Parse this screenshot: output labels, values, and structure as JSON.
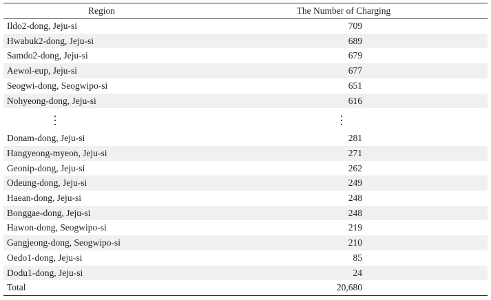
{
  "table": {
    "headers": {
      "region": "Region",
      "count": "The Number of Charging"
    },
    "rows_top": [
      {
        "region": "Ildo2-dong, Jeju-si",
        "count": "709"
      },
      {
        "region": "Hwabuk2-dong, Jeju-si",
        "count": "689"
      },
      {
        "region": "Samdo2-dong, Jeju-si",
        "count": "679"
      },
      {
        "region": "Aewol-eup, Jeju-si",
        "count": "677"
      },
      {
        "region": "Seogwi-dong, Seogwipo-si",
        "count": "651"
      },
      {
        "region": "Nohyeong-dong, Jeju-si",
        "count": "616"
      }
    ],
    "rows_bottom": [
      {
        "region": "Donam-dong, Jeju-si",
        "count": "281"
      },
      {
        "region": "Hangyeong-myeon, Jeju-si",
        "count": "271"
      },
      {
        "region": "Geonip-dong, Jeju-si",
        "count": "262"
      },
      {
        "region": "Odeung-dong, Jeju-si",
        "count": "249"
      },
      {
        "region": "Haean-dong, Jeju-si",
        "count": "248"
      },
      {
        "region": "Bonggae-dong, Jeju-si",
        "count": "248"
      },
      {
        "region": "Hawon-dong, Seogwipo-si",
        "count": "219"
      },
      {
        "region": "Gangjeong-dong, Seogwipo-si",
        "count": "210"
      },
      {
        "region": "Oedo1-dong, Jeju-si",
        "count": "85"
      },
      {
        "region": "Dodu1-dong, Jeju-si",
        "count": "24"
      }
    ],
    "total": {
      "label": "Total",
      "count": "20,680"
    }
  }
}
